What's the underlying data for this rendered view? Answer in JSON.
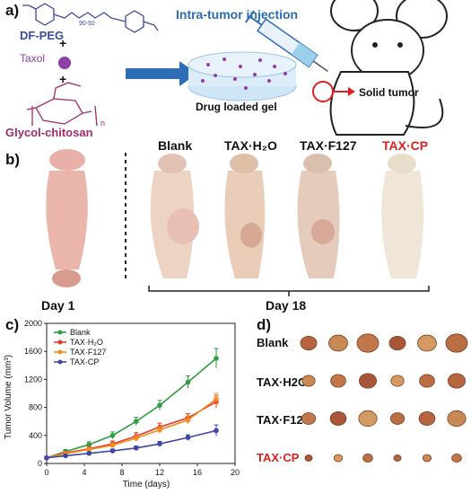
{
  "panel_a": {
    "label": "a)",
    "df_peg_label": "DF-PEG",
    "peg_subscript": "90-92",
    "plus": "+",
    "taxol_label": "Taxol",
    "chitosan_label": "Glycol-chitosan",
    "chitosan_subscript": "n",
    "injection_title": "Intra-tumor injection",
    "gel_label": "Drug loaded gel",
    "tumor_label": "Solid tumor",
    "colors": {
      "peg": "#3b4a9e",
      "taxol": "#8e3fa8",
      "chitosan": "#a12b6b",
      "arrow": "#2f6db5",
      "tumor": "#e02020"
    }
  },
  "panel_b": {
    "label": "b)",
    "groups": [
      "Blank",
      "TAX·H₂O",
      "TAX·F127",
      "TAX·CP"
    ],
    "day1_label": "Day 1",
    "day18_label": "Day 18"
  },
  "panel_c": {
    "label": "c)"
  },
  "chart_data": {
    "type": "line",
    "xlabel": "Time (days)",
    "ylabel": "Tumor Volume (mm³)",
    "xlim": [
      0,
      20
    ],
    "ylim": [
      0,
      2000
    ],
    "xticks": [
      0,
      4,
      8,
      12,
      16,
      20
    ],
    "yticks": [
      0,
      400,
      800,
      1200,
      1600,
      2000
    ],
    "x": [
      0,
      2,
      4.5,
      7,
      9.5,
      12,
      15,
      18
    ],
    "series": [
      {
        "name": "Blank",
        "color": "#2e9e3e",
        "values": [
          80,
          170,
          270,
          400,
          600,
          830,
          1160,
          1500
        ],
        "errors": [
          20,
          30,
          40,
          50,
          60,
          70,
          90,
          140
        ]
      },
      {
        "name": "TAX·H₂O",
        "color": "#e8392b",
        "values": [
          80,
          150,
          210,
          280,
          390,
          520,
          650,
          880
        ],
        "errors": [
          20,
          25,
          30,
          40,
          50,
          55,
          60,
          90
        ]
      },
      {
        "name": "TAX·F127",
        "color": "#f28c1e",
        "values": [
          80,
          140,
          200,
          260,
          360,
          480,
          620,
          920
        ],
        "errors": [
          20,
          25,
          30,
          35,
          45,
          50,
          55,
          80
        ]
      },
      {
        "name": "TAX·CP",
        "color": "#3f46a8",
        "values": [
          80,
          110,
          145,
          180,
          220,
          280,
          370,
          470
        ],
        "errors": [
          15,
          20,
          20,
          25,
          30,
          35,
          40,
          80
        ]
      }
    ],
    "legend_position": "top-left"
  },
  "panel_d": {
    "label": "d)",
    "rows": [
      {
        "name": "Blank",
        "count": 6,
        "size": 1.0,
        "color": "#1a1a1a"
      },
      {
        "name": "TAX·H2O",
        "count": 6,
        "size": 0.8,
        "color": "#1a1a1a"
      },
      {
        "name": "TAX·F127",
        "count": 6,
        "size": 0.85,
        "color": "#1a1a1a"
      },
      {
        "name": "TAX·CP",
        "count": 6,
        "size": 0.45,
        "color": "#e02020"
      }
    ]
  }
}
